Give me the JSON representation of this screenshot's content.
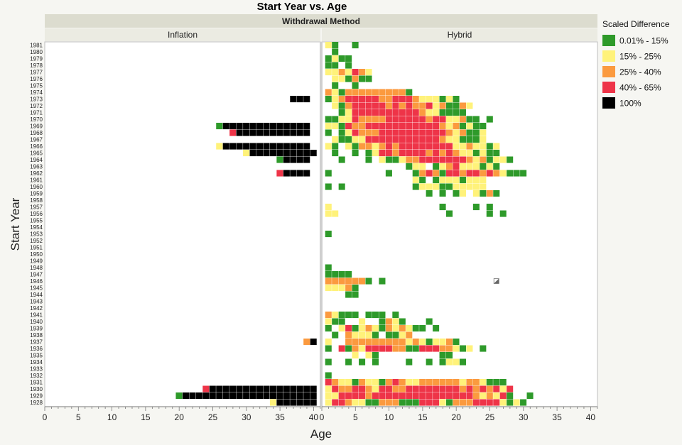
{
  "chart_data": {
    "type": "heatmap",
    "title": "Start Year vs. Age",
    "group_title": "Withdrawal Method",
    "panels": [
      "Inflation",
      "Hybrid"
    ],
    "xlabel": "Age",
    "ylabel": "Start Year",
    "xlim": [
      0,
      41
    ],
    "xticks": [
      0,
      5,
      10,
      15,
      20,
      25,
      30,
      35,
      40
    ],
    "years": [
      1981,
      1980,
      1979,
      1978,
      1977,
      1976,
      1975,
      1974,
      1973,
      1972,
      1971,
      1970,
      1969,
      1968,
      1967,
      1966,
      1965,
      1964,
      1963,
      1962,
      1961,
      1960,
      1959,
      1958,
      1957,
      1956,
      1955,
      1954,
      1953,
      1952,
      1951,
      1950,
      1949,
      1948,
      1947,
      1946,
      1945,
      1944,
      1943,
      1942,
      1941,
      1940,
      1939,
      1938,
      1937,
      1936,
      1935,
      1934,
      1933,
      1932,
      1931,
      1930,
      1929,
      1928
    ],
    "legend": {
      "title": "Scaled Difference",
      "items": [
        {
          "label": "0.01% - 15%",
          "color": "#2e9a2a"
        },
        {
          "label": "15% - 25%",
          "color": "#fff27a"
        },
        {
          "label": "25% - 40%",
          "color": "#fb9a3f"
        },
        {
          "label": "40% - 65%",
          "color": "#ee3448"
        },
        {
          "label": "100%",
          "color": "#000000"
        }
      ]
    },
    "cell_codes": {
      "G": 0,
      "Y": 1,
      "O": 2,
      "R": 3,
      "K": 4
    },
    "cells": {
      "Inflation": {
        "1973": {
          "start": 37,
          "codes": "KKK"
        },
        "1969": {
          "start": 26,
          "codes": "GKKKKKKKKKKKKK"
        },
        "1968": {
          "start": 28,
          "codes": "RKKKKKKKKKKK"
        },
        "1966": {
          "start": 26,
          "codes": "YKKKKKKKKKKKKK"
        },
        "1965": {
          "start": 30,
          "codes": "YKKKKKKKKKK"
        },
        "1964": {
          "start": 35,
          "codes": "GKKKK"
        },
        "1962": {
          "start": 35,
          "codes": "RKKKK"
        },
        "1937": {
          "start": 39,
          "codes": "OK"
        },
        "1930": {
          "start": 24,
          "codes": "RKKKKKKKKKKKKKKKK"
        },
        "1929": {
          "start": 20,
          "codes": "GKKKKKKKKKKKKKKKKKKKK"
        },
        "1928": {
          "start": 34,
          "codes": "YKKKKKK"
        }
      },
      "Hybrid": {
        "1981": {
          "start": 1,
          "codes": "YG..G"
        },
        "1980": {
          "start": 1,
          "codes": ".G"
        },
        "1979": {
          "start": 1,
          "codes": "GYGG"
        },
        "1978": {
          "start": 1,
          "codes": "GG.G"
        },
        "1977": {
          "start": 1,
          "codes": "YYOYROY"
        },
        "1976": {
          "start": 2,
          "codes": "YYGOGG"
        },
        "1975": {
          "start": 2,
          "codes": "G..G"
        },
        "1974": {
          "start": 1,
          "codes": "OYGOOOOOOOOOG"
        },
        "1973": {
          "start": 1,
          "codes": "GYORRRRROORRROYYYGYG"
        },
        "1972": {
          "start": 2,
          "codes": "YGORRRRROROROORYOGGOY"
        },
        "1971": {
          "start": 3,
          "codes": "GYRRRRRRRRRROYYGGGG"
        },
        "1970": {
          "start": 1,
          "codes": "GGYYROOOORRRRRRORRYYOGG.G"
        },
        "1969": {
          "start": 1,
          "codes": "YYGROORRRRRRRRRRROYOGYGG"
        },
        "1968": {
          "start": 1,
          "codes": "G.GYROOORRRRRRRRRROYOGGY"
        },
        "1967": {
          "start": 2,
          "codes": "YGGYYRRRRRRRRRRROYYGGGY"
        },
        "1966": {
          "start": 1,
          "codes": "YG.YGOOYORORRRRRRRRYYOYYGY"
        },
        "1965": {
          "start": 2,
          "codes": "G..G.GYRRORRRROROROYYGYGG"
        },
        "1964": {
          "start": 3,
          "codes": "G...G.YGGYOORRRRRRROYOGYYG"
        },
        "1963": {
          "start": 13,
          "codes": "GYY.GYORYYYGYG"
        },
        "1962": {
          "start": 1,
          "codes": "G........G...GOROGRRORROROYGGG"
        },
        "1961": {
          "start": 14,
          "codes": "YG.GYYYGYYY"
        },
        "1960": {
          "start": 1,
          "codes": "G.G..........GYYYGGYYYYY"
        },
        "1959": {
          "start": 16,
          "codes": "G.G.GY.YGOG"
        },
        "1957": {
          "start": 1,
          "codes": "Y................G....G.G"
        },
        "1956": {
          "start": 1,
          "codes": "YY................G.....G.G"
        },
        "1953": {
          "start": 1,
          "codes": "G"
        },
        "1948": {
          "start": 1,
          "codes": "G"
        },
        "1947": {
          "start": 1,
          "codes": "GGGG"
        },
        "1946": {
          "start": 1,
          "codes": "OOOOOOG.G"
        },
        "1945": {
          "start": 1,
          "codes": "YYYOG"
        },
        "1944": {
          "start": 4,
          "codes": "GG"
        },
        "1941": {
          "start": 1,
          "codes": "OYGGG.GGG.G"
        },
        "1940": {
          "start": 1,
          "codes": "YGG..Y..GOYG...G"
        },
        "1939": {
          "start": 1,
          "codes": "G.YRGYOYGOYOYGG.G"
        },
        "1938": {
          "start": 2,
          "codes": "G.OYYYG.GGYO"
        },
        "1937": {
          "start": 1,
          "codes": "Y..OOOOOOOOOYOYGYYOG"
        },
        "1936": {
          "start": 1,
          "codes": "G.RGOYRRRROOGGRRROOYGY.G"
        },
        "1935": {
          "start": 5,
          "codes": "Y.YG.........GG"
        },
        "1934": {
          "start": 1,
          "codes": "G..G.G.G....G..G.GYYG"
        },
        "1932": {
          "start": 1,
          "codes": "G"
        },
        "1931": {
          "start": 1,
          "codes": "ROYYGOYYGOROYYOOOOOOYOOYGGG"
        },
        "1930": {
          "start": 1,
          "codes": "YROORROYRROORRRRRRRRORORORYR"
        },
        "1929": {
          "start": 1,
          "codes": "YYRRRRORRRRRRRRRRRRRRROYOYRG..G"
        },
        "1928": {
          "start": 1,
          "codes": "YRROYYGGOOOGGGRRRYGOOORRRRYGYG"
        }
      }
    },
    "special_marker": {
      "panel": "Hybrid",
      "year": 1946,
      "age": 26
    }
  }
}
